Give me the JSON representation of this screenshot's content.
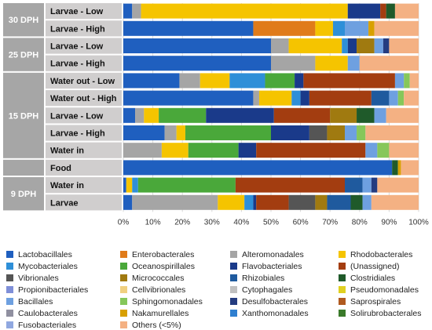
{
  "chart_data": {
    "type": "bar",
    "orientation": "horizontal-stacked-100",
    "x_ticks": [
      "0%",
      "10%",
      "20%",
      "30%",
      "40%",
      "50%",
      "60%",
      "70%",
      "80%",
      "90%",
      "100%"
    ],
    "xlim": [
      0,
      100
    ],
    "grid": true,
    "legend_position": "bottom",
    "groups": [
      {
        "label": "30 DPH",
        "rows": [
          0,
          1
        ]
      },
      {
        "label": "25 DPH",
        "rows": [
          2,
          3
        ]
      },
      {
        "label": "15 DPH",
        "rows": [
          4,
          5,
          6,
          7,
          8
        ]
      },
      {
        "label": "",
        "rows": [
          9
        ]
      },
      {
        "label": "9 DPH",
        "rows": [
          10,
          11
        ]
      }
    ],
    "categories": [
      "Larvae - Low",
      "Larvae - High",
      "Larvae - Low",
      "Larvae - High",
      "Water out - Low",
      "Water out - High",
      "Larvae - Low",
      "Larvae - High",
      "Water in",
      "Food",
      "Water in",
      "Larvae"
    ],
    "series": [
      {
        "name": "Lactobacillales",
        "color": "#1f5fbf",
        "values": [
          3,
          44,
          50,
          50,
          19,
          44,
          4,
          14,
          0,
          91,
          1,
          3
        ]
      },
      {
        "name": "Enterobacterales",
        "color": "#e07b1a",
        "values": [
          0,
          21,
          0,
          0,
          0,
          0,
          0,
          0,
          0,
          0,
          0,
          0
        ]
      },
      {
        "name": "Alteromonadales",
        "color": "#a5a5a5",
        "values": [
          3,
          0,
          6,
          15,
          7,
          2,
          3,
          4,
          13,
          0,
          0,
          29
        ]
      },
      {
        "name": "Rhodobacterales",
        "color": "#f5c400",
        "values": [
          70,
          6,
          18,
          11,
          10,
          11,
          5,
          3,
          9,
          0,
          2,
          9
        ]
      },
      {
        "name": "Mycobacteriales",
        "color": "#2e8fd8",
        "values": [
          0,
          4,
          2,
          0,
          12,
          3,
          0,
          0,
          0,
          0,
          2,
          3
        ]
      },
      {
        "name": "Oceanospirillales",
        "color": "#4aa83a",
        "values": [
          0,
          0,
          0,
          0,
          10,
          0,
          16,
          29,
          17,
          0,
          33,
          0
        ]
      },
      {
        "name": "Flavobacteriales",
        "color": "#1a3a8a",
        "values": [
          11,
          0,
          3,
          0,
          3,
          3,
          23,
          13,
          6,
          0,
          0,
          1
        ]
      },
      {
        "name": "(Unassigned)",
        "color": "#a33d10",
        "values": [
          2,
          0,
          0,
          0,
          31,
          21,
          19,
          0,
          37,
          0,
          37,
          11
        ]
      },
      {
        "name": "Vibrionales",
        "color": "#555555",
        "values": [
          0,
          0,
          0,
          0,
          0,
          0,
          0,
          6,
          0,
          0,
          0,
          9
        ]
      },
      {
        "name": "Micrococcales",
        "color": "#a07a10",
        "values": [
          0,
          0,
          6,
          0,
          0,
          0,
          9,
          6,
          0,
          0,
          0,
          4
        ]
      },
      {
        "name": "Rhizobiales",
        "color": "#1f5a9e",
        "values": [
          0,
          0,
          0,
          0,
          0,
          6,
          0,
          0,
          0,
          0,
          6,
          8
        ]
      },
      {
        "name": "Clostridiales",
        "color": "#1f5a2a",
        "values": [
          3,
          0,
          0,
          0,
          0,
          0,
          6,
          0,
          0,
          2,
          0,
          4
        ]
      },
      {
        "name": "Propionibacteriales",
        "color": "#7f8fd8",
        "values": [
          0,
          0,
          0,
          0,
          0,
          0,
          0,
          0,
          0,
          0,
          0,
          0
        ]
      },
      {
        "name": "Cellvibrionales",
        "color": "#f0d080",
        "values": [
          0,
          0,
          0,
          0,
          0,
          0,
          0,
          0,
          0,
          0,
          0,
          0
        ]
      },
      {
        "name": "Cytophagales",
        "color": "#c0c0c0",
        "values": [
          0,
          0,
          0,
          0,
          0,
          0,
          0,
          0,
          0,
          0,
          0,
          0
        ]
      },
      {
        "name": "Pseudomonadales",
        "color": "#e0d020",
        "values": [
          0,
          0,
          0,
          0,
          0,
          0,
          0,
          0,
          0,
          0,
          0,
          0
        ]
      },
      {
        "name": "Bacillales",
        "color": "#6ea0e0",
        "values": [
          0,
          8,
          3,
          4,
          3,
          3,
          4,
          4,
          4,
          0,
          3,
          3
        ]
      },
      {
        "name": "Sphingomonadales",
        "color": "#86c75a",
        "values": [
          0,
          0,
          0,
          0,
          2,
          2,
          0,
          3,
          4,
          0,
          0,
          0
        ]
      },
      {
        "name": "Desulfobacterales",
        "color": "#243c80",
        "values": [
          0,
          0,
          2,
          0,
          0,
          0,
          0,
          0,
          0,
          0,
          2,
          0
        ]
      },
      {
        "name": "Saprospirales",
        "color": "#b05a20",
        "values": [
          0,
          0,
          0,
          0,
          0,
          0,
          0,
          0,
          0,
          0,
          0,
          0
        ]
      },
      {
        "name": "Caulobacterales",
        "color": "#9090a0",
        "values": [
          0,
          0,
          0,
          0,
          0,
          0,
          0,
          0,
          0,
          0,
          0,
          0
        ]
      },
      {
        "name": "Nakamurellales",
        "color": "#d8a000",
        "values": [
          0,
          2,
          0,
          0,
          0,
          0,
          0,
          0,
          0,
          1,
          0,
          0
        ]
      },
      {
        "name": "Xanthomonadales",
        "color": "#2f7fd0",
        "values": [
          0,
          0,
          0,
          0,
          0,
          0,
          0,
          0,
          0,
          0,
          0,
          0
        ]
      },
      {
        "name": "Solirubrobacterales",
        "color": "#3a7a2a",
        "values": [
          0,
          0,
          0,
          0,
          0,
          0,
          0,
          0,
          0,
          0,
          0,
          0
        ]
      },
      {
        "name": "Fusobacteriales",
        "color": "#90a8e0",
        "values": [
          0,
          0,
          0,
          0,
          0,
          0,
          0,
          0,
          0,
          0,
          0,
          0
        ]
      },
      {
        "name": "Others (<5%)",
        "color": "#f4b183",
        "values": [
          8,
          15,
          10,
          20,
          3,
          5,
          11,
          18,
          10,
          6,
          14,
          16
        ]
      }
    ]
  }
}
